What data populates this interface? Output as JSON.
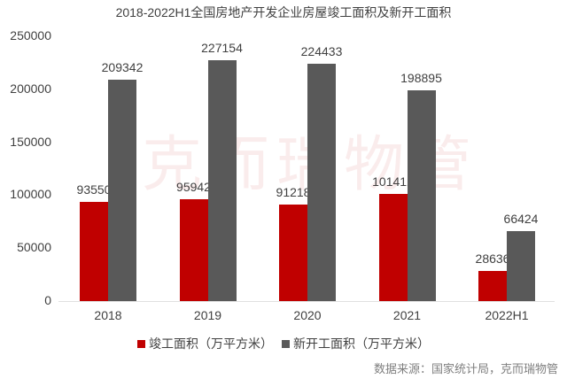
{
  "chart_data": {
    "type": "bar",
    "title": "2018-2022H1全国房地产开发企业房屋竣工面积及新开工面积",
    "categories": [
      "2018",
      "2019",
      "2020",
      "2021",
      "2022H1"
    ],
    "series": [
      {
        "name": "竣工面积（万平方米）",
        "color": "#c00000",
        "values": [
          93550,
          95942,
          91218,
          101412,
          28636
        ]
      },
      {
        "name": "新开工面积（万平方米）",
        "color": "#595959",
        "values": [
          209342,
          227154,
          224433,
          198895,
          66424
        ]
      }
    ],
    "xlabel": "",
    "ylabel": "",
    "ylim": [
      0,
      250000
    ],
    "yticks": [
      "250000",
      "200000",
      "150000",
      "100000",
      "50000",
      "0"
    ],
    "grid": false,
    "legend_position": "bottom",
    "data_labels": true
  },
  "watermark": "克而瑞物管",
  "source": "数据来源：国家统计局，克而瑞物管"
}
